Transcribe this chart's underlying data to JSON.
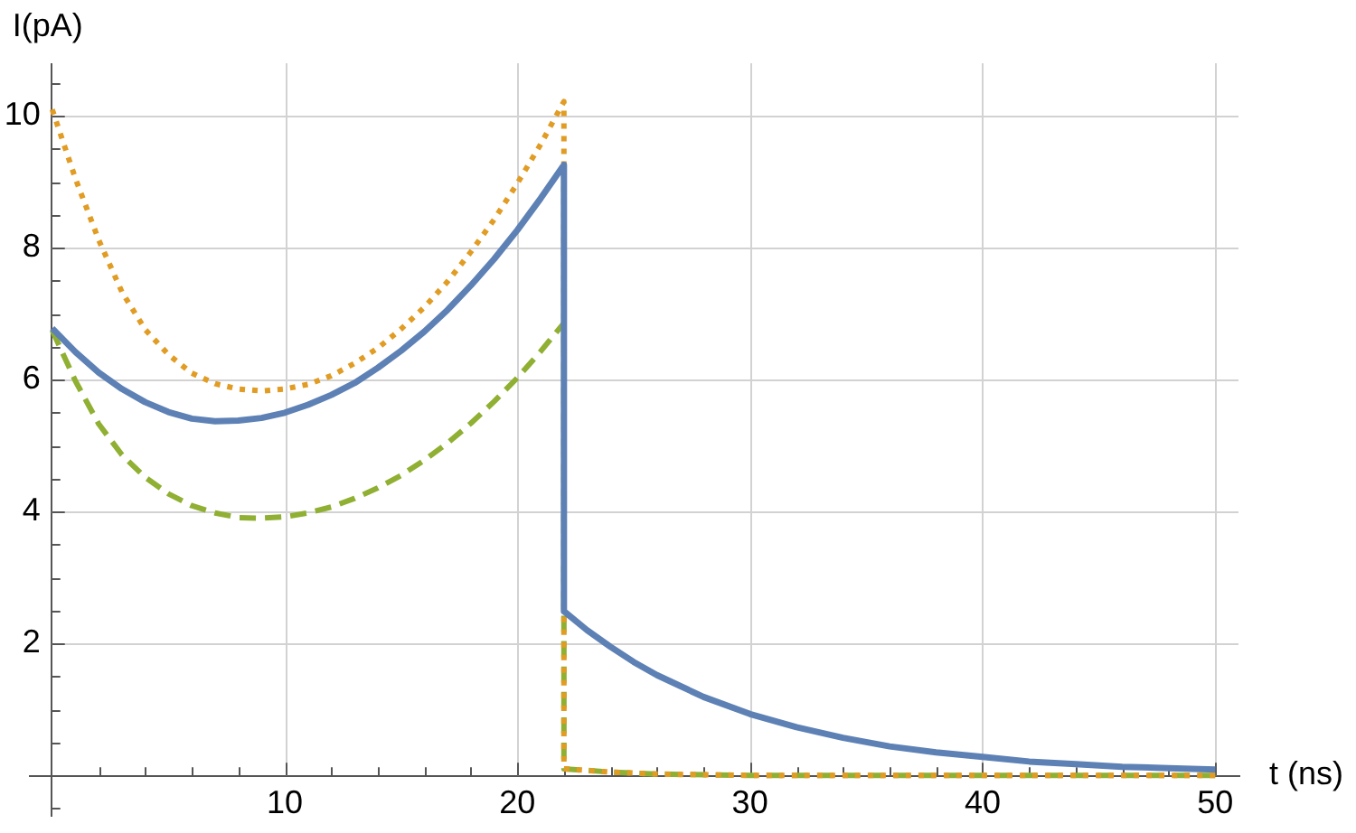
{
  "chart_data": {
    "type": "line",
    "xlabel": "t (ns)",
    "ylabel": "I(pA)",
    "xlim": [
      -1,
      51
    ],
    "ylim": [
      -0.6,
      10.8
    ],
    "xticks": [
      {
        "value": 2,
        "label": null
      },
      {
        "value": 4,
        "label": null
      },
      {
        "value": 6,
        "label": null
      },
      {
        "value": 8,
        "label": null
      },
      10,
      {
        "value": 12,
        "label": null
      },
      {
        "value": 14,
        "label": null
      },
      {
        "value": 16,
        "label": null
      },
      {
        "value": 18,
        "label": null
      },
      20,
      {
        "value": 22,
        "label": null
      },
      {
        "value": 24,
        "label": null
      },
      {
        "value": 26,
        "label": null
      },
      {
        "value": 28,
        "label": null
      },
      30,
      {
        "value": 32,
        "label": null
      },
      {
        "value": 34,
        "label": null
      },
      {
        "value": 36,
        "label": null
      },
      {
        "value": 38,
        "label": null
      },
      40,
      {
        "value": 42,
        "label": null
      },
      {
        "value": 44,
        "label": null
      },
      {
        "value": 46,
        "label": null
      },
      {
        "value": 48,
        "label": null
      },
      50
    ],
    "yticks": [
      {
        "value": -0.5,
        "label": null
      },
      {
        "value": 0.5,
        "label": null
      },
      {
        "value": 1,
        "label": null
      },
      {
        "value": 1.5,
        "label": null
      },
      2,
      {
        "value": 2.5,
        "label": null
      },
      {
        "value": 3,
        "label": null
      },
      {
        "value": 3.5,
        "label": null
      },
      4,
      {
        "value": 4.5,
        "label": null
      },
      {
        "value": 5,
        "label": null
      },
      {
        "value": 5.5,
        "label": null
      },
      6,
      {
        "value": 6.5,
        "label": null
      },
      {
        "value": 7,
        "label": null
      },
      {
        "value": 7.5,
        "label": null
      },
      8,
      {
        "value": 8.5,
        "label": null
      },
      {
        "value": 9,
        "label": null
      },
      {
        "value": 9.5,
        "label": null
      },
      10,
      {
        "value": 10.5,
        "label": null
      }
    ],
    "grid": true,
    "series": [
      {
        "color": "#5e81b5",
        "line_style": "solid",
        "x": [
          0,
          1,
          2,
          3,
          4,
          5,
          6,
          7,
          8,
          9,
          10,
          11,
          12,
          13,
          14,
          15,
          16,
          17,
          18,
          19,
          20,
          21,
          22,
          22,
          23,
          24,
          25,
          26,
          28,
          30,
          32,
          34,
          36,
          38,
          40,
          42,
          44,
          46,
          48,
          50
        ],
        "values": [
          6.78,
          6.42,
          6.11,
          5.86,
          5.66,
          5.51,
          5.41,
          5.37,
          5.38,
          5.42,
          5.5,
          5.62,
          5.77,
          5.95,
          6.18,
          6.44,
          6.73,
          7.06,
          7.43,
          7.83,
          8.27,
          8.75,
          9.26,
          2.49,
          2.2,
          1.95,
          1.72,
          1.52,
          1.19,
          0.93,
          0.73,
          0.57,
          0.44,
          0.35,
          0.28,
          0.21,
          0.17,
          0.13,
          0.11,
          0.09
        ]
      },
      {
        "color": "#e19c24",
        "line_style": "dotted",
        "x": [
          0,
          1,
          2,
          3,
          4,
          5,
          6,
          7,
          8,
          9,
          10,
          11,
          12,
          13,
          14,
          15,
          16,
          17,
          18,
          19,
          20,
          21,
          22,
          22,
          24,
          26,
          30,
          40,
          50
        ],
        "values": [
          10.1,
          9.05,
          8.12,
          7.33,
          6.76,
          6.38,
          6.1,
          5.94,
          5.86,
          5.83,
          5.86,
          5.93,
          6.06,
          6.25,
          6.48,
          6.77,
          7.1,
          7.49,
          7.94,
          8.43,
          8.98,
          9.57,
          10.22,
          0.1,
          0.05,
          0.02,
          0,
          0,
          0
        ]
      },
      {
        "color": "#8fb032",
        "line_style": "dashed",
        "x": [
          0,
          1,
          2,
          3,
          4,
          5,
          6,
          7,
          8,
          9,
          10,
          11,
          12,
          13,
          14,
          15,
          16,
          17,
          18,
          19,
          20,
          21,
          22,
          22,
          24,
          26,
          30,
          40,
          50
        ],
        "values": [
          6.75,
          5.98,
          5.33,
          4.86,
          4.52,
          4.27,
          4.09,
          3.98,
          3.91,
          3.9,
          3.92,
          3.98,
          4.07,
          4.2,
          4.36,
          4.55,
          4.78,
          5.04,
          5.34,
          5.67,
          6.03,
          6.43,
          6.86,
          0.1,
          0.05,
          0.02,
          0,
          0,
          0
        ]
      }
    ]
  }
}
